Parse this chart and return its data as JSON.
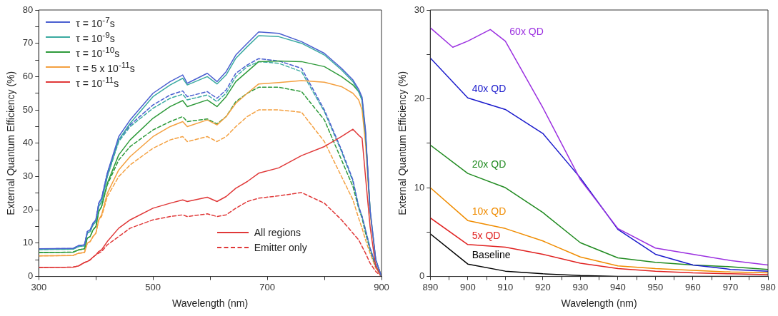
{
  "chart_data": [
    {
      "type": "line",
      "xlabel": "Wavelength (nm)",
      "ylabel": "External Quantum Efficiency (%)",
      "xlim": [
        300,
        900
      ],
      "ylim": [
        0,
        80
      ],
      "xticks": [
        300,
        {
          "value": 400,
          "label": null
        },
        500,
        {
          "value": 600,
          "label": null
        },
        700,
        {
          "value": 800,
          "label": null
        },
        900
      ],
      "yticks": [
        0,
        {
          "value": 5,
          "label": null
        },
        10,
        {
          "value": 15,
          "label": null
        },
        20,
        {
          "value": 25,
          "label": null
        },
        30,
        {
          "value": 35,
          "label": null
        },
        40,
        {
          "value": 45,
          "label": null
        },
        50,
        {
          "value": 55,
          "label": null
        },
        60,
        {
          "value": 65,
          "label": null
        },
        70,
        {
          "value": 75,
          "label": null
        },
        80
      ],
      "grid": false,
      "legend": "top left",
      "marker": "none",
      "line_style": "solid",
      "annotations": [
        "All regions",
        "Emitter only"
      ],
      "x": [
        300,
        360,
        370,
        380,
        385,
        390,
        395,
        400,
        405,
        410,
        420,
        440,
        460,
        500,
        530,
        552,
        560,
        595,
        612,
        628,
        645,
        665,
        685,
        720,
        760,
        800,
        830,
        850,
        860,
        866,
        872,
        880,
        890,
        900
      ],
      "series": [
        {
          "name": "τ = 10$^{-7}$s",
          "color": "#4a5fd0",
          "values": [
            8.3,
            8.4,
            9.3,
            9.5,
            13.5,
            14,
            16,
            17,
            22,
            23.5,
            31,
            42,
            47,
            55,
            58.5,
            60.5,
            58,
            61,
            58.5,
            61.5,
            66.5,
            70,
            73.4,
            73,
            70.5,
            67,
            62.5,
            59,
            56.2,
            53.8,
            44,
            20,
            5,
            0
          ]
        },
        {
          "name": "τ = 10$^{-9}$s",
          "color": "#3aaaa0",
          "values": [
            8.1,
            8.2,
            9,
            9.2,
            13,
            13.5,
            15.5,
            16.5,
            21,
            22.5,
            30,
            41,
            46,
            54,
            57.5,
            59.5,
            57.5,
            60,
            57.8,
            60.5,
            65.5,
            69,
            72.3,
            72,
            70,
            66.5,
            62,
            58.5,
            55.5,
            53,
            43,
            20,
            5,
            0
          ]
        },
        {
          "name": "τ = 10$^{-10}$s",
          "color": "#2e9a3a",
          "values": [
            7.2,
            7.3,
            8,
            8.3,
            11.5,
            12,
            14,
            15,
            19.5,
            21,
            28,
            36.5,
            41,
            47.5,
            51,
            52.8,
            51,
            53,
            51,
            54,
            58.5,
            61.5,
            64.5,
            64.7,
            64.5,
            63,
            60,
            57.5,
            55.5,
            53,
            43,
            20,
            null,
            null
          ]
        },
        {
          "name": "τ = 5 x 10$^{-11}$s",
          "color": "#f4a040",
          "values": [
            6.2,
            6.3,
            7,
            7.2,
            10,
            10.5,
            12,
            13,
            17,
            18.5,
            25,
            32,
            36,
            42,
            45,
            46.5,
            45,
            47,
            45.5,
            48,
            52,
            55,
            57.8,
            58.2,
            58.8,
            58.3,
            57,
            55,
            53,
            50,
            40,
            19,
            5,
            0
          ]
        },
        {
          "name": "τ = 10$^{-11}$s",
          "color": "#e03838",
          "values": [
            2.7,
            2.8,
            3.2,
            4.2,
            4.5,
            5,
            5.8,
            6.5,
            7.5,
            8,
            10.5,
            14.5,
            17,
            20.5,
            22,
            23,
            22.5,
            23.8,
            22.5,
            24,
            26.5,
            28.5,
            31,
            32.6,
            36.3,
            39,
            42,
            44.2,
            42.4,
            41.5,
            30,
            15,
            3,
            0
          ]
        },
        {
          "color": "#4a5fd0",
          "line_style": "dashed",
          "values": [
            8.3,
            8.4,
            9.3,
            9.5,
            13.5,
            14,
            16,
            17,
            22,
            23.5,
            31,
            41,
            45.5,
            51.5,
            54.5,
            55.7,
            54,
            55.5,
            53.5,
            56,
            61,
            63.5,
            65.4,
            64.7,
            62.5,
            50,
            38,
            29,
            21,
            18,
            14,
            8.5,
            3.5,
            0
          ]
        },
        {
          "color": "#3aaaa0",
          "line_style": "dashed",
          "values": [
            8.1,
            8.2,
            9,
            9.2,
            13,
            13.5,
            15.5,
            16.5,
            21,
            22.5,
            30,
            40.5,
            45,
            50.5,
            53.5,
            54.7,
            53,
            54.5,
            52.5,
            55,
            60,
            63,
            64.5,
            64,
            61.5,
            49.5,
            37.5,
            28.5,
            21,
            18,
            14,
            8.5,
            3.5,
            0
          ]
        },
        {
          "color": "#2e9a3a",
          "line_style": "dashed",
          "values": [
            7.2,
            7.3,
            8,
            8.3,
            11.5,
            12,
            14,
            15,
            19.5,
            21,
            27.5,
            35,
            39,
            44,
            46.5,
            48,
            46.5,
            47.3,
            45.8,
            48,
            52.5,
            55,
            56.8,
            56.8,
            55.5,
            47,
            35,
            27,
            20.5,
            17.5,
            13,
            8,
            3,
            0
          ]
        },
        {
          "color": "#f4a040",
          "line_style": "dashed",
          "values": [
            6.2,
            6.3,
            7,
            7.2,
            10,
            10.5,
            12,
            13,
            17,
            18,
            24,
            30,
            33.5,
            38.5,
            41,
            42,
            40.5,
            42,
            40.5,
            42,
            45,
            48,
            50,
            50,
            49.3,
            40.5,
            30,
            23,
            17.5,
            14.5,
            11,
            7,
            2.5,
            0
          ]
        },
        {
          "color": "#e03838",
          "line_style": "dashed",
          "values": [
            2.7,
            2.8,
            3.2,
            4.2,
            4.5,
            5,
            5.8,
            6.5,
            7,
            7.5,
            9.5,
            12,
            14.5,
            17,
            18,
            18.5,
            18,
            18.8,
            18,
            18.5,
            20.5,
            22.5,
            23.5,
            24.2,
            25.2,
            22,
            17,
            13,
            11,
            9,
            7,
            4,
            1.5,
            0
          ]
        }
      ]
    },
    {
      "type": "line",
      "xlabel": "Wavelength (nm)",
      "ylabel": "External Quantum Efficiency (%)",
      "xlim": [
        890,
        980
      ],
      "ylim": [
        0,
        30
      ],
      "xticks": [
        890,
        {
          "value": 895,
          "label": null
        },
        900,
        {
          "value": 905,
          "label": null
        },
        910,
        {
          "value": 915,
          "label": null
        },
        920,
        {
          "value": 925,
          "label": null
        },
        930,
        {
          "value": 935,
          "label": null
        },
        940,
        {
          "value": 945,
          "label": null
        },
        950,
        {
          "value": 955,
          "label": null
        },
        960,
        {
          "value": 965,
          "label": null
        },
        970,
        {
          "value": 975,
          "label": null
        },
        980
      ],
      "yticks": [
        0,
        {
          "value": 5,
          "label": null
        },
        10,
        {
          "value": 15,
          "label": null
        },
        20,
        {
          "value": 25,
          "label": null
        },
        30
      ],
      "grid": false,
      "legend": false,
      "marker": "none",
      "line_style": "solid",
      "x": [
        890,
        900,
        910,
        920,
        930,
        940,
        950,
        960,
        970,
        980
      ],
      "series": [
        {
          "name": "60x QD",
          "color": "#9b30e0",
          "x": [
            890,
            896,
            900,
            906,
            910,
            920,
            930,
            940,
            950,
            960,
            970,
            980
          ],
          "values": [
            28,
            25.8,
            26.5,
            27.8,
            26.5,
            19,
            10.9,
            5.4,
            3.2,
            2.5,
            1.8,
            1.3
          ]
        },
        {
          "name": "40x QD",
          "color": "#1a1acc",
          "values": [
            24.6,
            20.1,
            18.8,
            16.1,
            11.1,
            5.3,
            2.5,
            1.3,
            0.8,
            0.6
          ]
        },
        {
          "name": "20x QD",
          "color": "#1f8a1f",
          "values": [
            14.8,
            11.6,
            10,
            7.2,
            3.8,
            2.1,
            1.6,
            1.3,
            1.1,
            0.8
          ]
        },
        {
          "name": "10x QD",
          "color": "#f08c00",
          "values": [
            10,
            6.3,
            5.4,
            4,
            2.2,
            1.2,
            0.9,
            0.7,
            0.5,
            0.4
          ]
        },
        {
          "name": "5x QD",
          "color": "#e0201f",
          "values": [
            6.6,
            3.6,
            3.3,
            2.5,
            1.5,
            0.9,
            0.6,
            0.4,
            0.3,
            0.2
          ]
        },
        {
          "name": "Baseline",
          "color": "#000000",
          "values": [
            4.8,
            1.4,
            0.6,
            0.3,
            0.1,
            0,
            0,
            0,
            0,
            0
          ]
        }
      ]
    }
  ]
}
